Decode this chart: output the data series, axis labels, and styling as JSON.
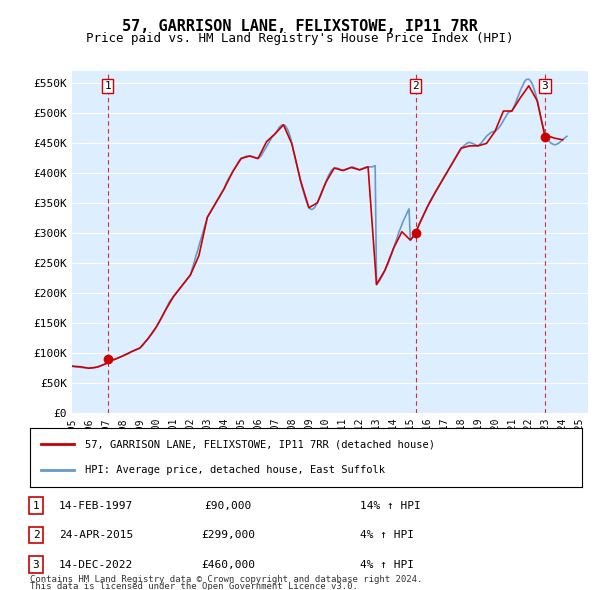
{
  "title": "57, GARRISON LANE, FELIXSTOWE, IP11 7RR",
  "subtitle": "Price paid vs. HM Land Registry's House Price Index (HPI)",
  "ylabel_ticks": [
    "£0",
    "£50K",
    "£100K",
    "£150K",
    "£200K",
    "£250K",
    "£300K",
    "£350K",
    "£400K",
    "£450K",
    "£500K",
    "£550K"
  ],
  "ytick_values": [
    0,
    50000,
    100000,
    150000,
    200000,
    250000,
    300000,
    350000,
    400000,
    450000,
    500000,
    550000
  ],
  "ylim": [
    0,
    570000
  ],
  "xlim_start": 1995.0,
  "xlim_end": 2025.5,
  "xtick_years": [
    1995,
    1996,
    1997,
    1998,
    1999,
    2000,
    2001,
    2002,
    2003,
    2004,
    2005,
    2006,
    2007,
    2008,
    2009,
    2010,
    2011,
    2012,
    2013,
    2014,
    2015,
    2016,
    2017,
    2018,
    2019,
    2020,
    2021,
    2022,
    2023,
    2024,
    2025
  ],
  "sale_dates": [
    1997.12,
    2015.31,
    2022.96
  ],
  "sale_prices": [
    90000,
    299000,
    460000
  ],
  "sale_labels": [
    "1",
    "2",
    "3"
  ],
  "red_line_color": "#cc0000",
  "blue_line_color": "#6699cc",
  "dashed_line_color": "#cc0000",
  "marker_color": "#cc0000",
  "bg_color": "#ddeeff",
  "plot_bg": "#ddeeff",
  "grid_color": "#ffffff",
  "legend1_text": "57, GARRISON LANE, FELIXSTOWE, IP11 7RR (detached house)",
  "legend2_text": "HPI: Average price, detached house, East Suffolk",
  "table_rows": [
    {
      "num": "1",
      "date": "14-FEB-1997",
      "price": "£90,000",
      "change": "14% ↑ HPI"
    },
    {
      "num": "2",
      "date": "24-APR-2015",
      "price": "£299,000",
      "change": "4% ↑ HPI"
    },
    {
      "num": "3",
      "date": "14-DEC-2022",
      "price": "£460,000",
      "change": "4% ↑ HPI"
    }
  ],
  "footnote1": "Contains HM Land Registry data © Crown copyright and database right 2024.",
  "footnote2": "This data is licensed under the Open Government Licence v3.0.",
  "hpi_data": {
    "years": [
      1995.0,
      1995.08,
      1995.17,
      1995.25,
      1995.33,
      1995.42,
      1995.5,
      1995.58,
      1995.67,
      1995.75,
      1995.83,
      1995.92,
      1996.0,
      1996.08,
      1996.17,
      1996.25,
      1996.33,
      1996.42,
      1996.5,
      1996.58,
      1996.67,
      1996.75,
      1996.83,
      1996.92,
      1997.0,
      1997.08,
      1997.17,
      1997.25,
      1997.33,
      1997.42,
      1997.5,
      1997.58,
      1997.67,
      1997.75,
      1997.83,
      1997.92,
      1998.0,
      1998.08,
      1998.17,
      1998.25,
      1998.33,
      1998.42,
      1998.5,
      1998.58,
      1998.67,
      1998.75,
      1998.83,
      1998.92,
      1999.0,
      1999.08,
      1999.17,
      1999.25,
      1999.33,
      1999.42,
      1999.5,
      1999.58,
      1999.67,
      1999.75,
      1999.83,
      1999.92,
      2000.0,
      2000.08,
      2000.17,
      2000.25,
      2000.33,
      2000.42,
      2000.5,
      2000.58,
      2000.67,
      2000.75,
      2000.83,
      2000.92,
      2001.0,
      2001.08,
      2001.17,
      2001.25,
      2001.33,
      2001.42,
      2001.5,
      2001.58,
      2001.67,
      2001.75,
      2001.83,
      2001.92,
      2002.0,
      2002.08,
      2002.17,
      2002.25,
      2002.33,
      2002.42,
      2002.5,
      2002.58,
      2002.67,
      2002.75,
      2002.83,
      2002.92,
      2003.0,
      2003.08,
      2003.17,
      2003.25,
      2003.33,
      2003.42,
      2003.5,
      2003.58,
      2003.67,
      2003.75,
      2003.83,
      2003.92,
      2004.0,
      2004.08,
      2004.17,
      2004.25,
      2004.33,
      2004.42,
      2004.5,
      2004.58,
      2004.67,
      2004.75,
      2004.83,
      2004.92,
      2005.0,
      2005.08,
      2005.17,
      2005.25,
      2005.33,
      2005.42,
      2005.5,
      2005.58,
      2005.67,
      2005.75,
      2005.83,
      2005.92,
      2006.0,
      2006.08,
      2006.17,
      2006.25,
      2006.33,
      2006.42,
      2006.5,
      2006.58,
      2006.67,
      2006.75,
      2006.83,
      2006.92,
      2007.0,
      2007.08,
      2007.17,
      2007.25,
      2007.33,
      2007.42,
      2007.5,
      2007.58,
      2007.67,
      2007.75,
      2007.83,
      2007.92,
      2008.0,
      2008.08,
      2008.17,
      2008.25,
      2008.33,
      2008.42,
      2008.5,
      2008.58,
      2008.67,
      2008.75,
      2008.83,
      2008.92,
      2009.0,
      2009.08,
      2009.17,
      2009.25,
      2009.33,
      2009.42,
      2009.5,
      2009.58,
      2009.67,
      2009.75,
      2009.83,
      2009.92,
      2010.0,
      2010.08,
      2010.17,
      2010.25,
      2010.33,
      2010.42,
      2010.5,
      2010.58,
      2010.67,
      2010.75,
      2010.83,
      2010.92,
      2011.0,
      2011.08,
      2011.17,
      2011.25,
      2011.33,
      2011.42,
      2011.5,
      2011.58,
      2011.67,
      2011.75,
      2011.83,
      2011.92,
      2012.0,
      2012.08,
      2012.17,
      2012.25,
      2012.33,
      2012.42,
      2012.5,
      2012.58,
      2012.67,
      2012.75,
      2012.83,
      2012.92,
      2013.0,
      2013.08,
      2013.17,
      2013.25,
      2013.33,
      2013.42,
      2013.5,
      2013.58,
      2013.67,
      2013.75,
      2013.83,
      2013.92,
      2014.0,
      2014.08,
      2014.17,
      2014.25,
      2014.33,
      2014.42,
      2014.5,
      2014.58,
      2014.67,
      2014.75,
      2014.83,
      2014.92,
      2015.0,
      2015.08,
      2015.17,
      2015.25,
      2015.33,
      2015.42,
      2015.5,
      2015.58,
      2015.67,
      2015.75,
      2015.83,
      2015.92,
      2016.0,
      2016.08,
      2016.17,
      2016.25,
      2016.33,
      2016.42,
      2016.5,
      2016.58,
      2016.67,
      2016.75,
      2016.83,
      2016.92,
      2017.0,
      2017.08,
      2017.17,
      2017.25,
      2017.33,
      2017.42,
      2017.5,
      2017.58,
      2017.67,
      2017.75,
      2017.83,
      2017.92,
      2018.0,
      2018.08,
      2018.17,
      2018.25,
      2018.33,
      2018.42,
      2018.5,
      2018.58,
      2018.67,
      2018.75,
      2018.83,
      2018.92,
      2019.0,
      2019.08,
      2019.17,
      2019.25,
      2019.33,
      2019.42,
      2019.5,
      2019.58,
      2019.67,
      2019.75,
      2019.83,
      2019.92,
      2020.0,
      2020.08,
      2020.17,
      2020.25,
      2020.33,
      2020.42,
      2020.5,
      2020.58,
      2020.67,
      2020.75,
      2020.83,
      2020.92,
      2021.0,
      2021.08,
      2021.17,
      2021.25,
      2021.33,
      2021.42,
      2021.5,
      2021.58,
      2021.67,
      2021.75,
      2021.83,
      2021.92,
      2022.0,
      2022.08,
      2022.17,
      2022.25,
      2022.33,
      2022.42,
      2022.5,
      2022.58,
      2022.67,
      2022.75,
      2022.83,
      2022.92,
      2023.0,
      2023.08,
      2023.17,
      2023.25,
      2023.33,
      2023.42,
      2023.5,
      2023.58,
      2023.67,
      2023.75,
      2023.83,
      2023.92,
      2024.0,
      2024.08,
      2024.17,
      2024.25
    ],
    "hpi_values": [
      78000,
      77500,
      77000,
      76800,
      76500,
      76200,
      76000,
      75800,
      75500,
      75200,
      75000,
      74800,
      74600,
      74500,
      74700,
      75000,
      75500,
      76000,
      76500,
      77500,
      78000,
      79000,
      80000,
      81000,
      82000,
      83000,
      84000,
      85000,
      86500,
      88000,
      89000,
      90000,
      91000,
      92000,
      93000,
      94000,
      95000,
      96000,
      97000,
      98000,
      99000,
      100500,
      102000,
      103000,
      104000,
      105000,
      106000,
      107000,
      108000,
      110000,
      112000,
      115000,
      118000,
      121000,
      124000,
      127000,
      130000,
      133000,
      136000,
      140000,
      144000,
      148000,
      152000,
      156000,
      160000,
      165000,
      170000,
      175000,
      180000,
      185000,
      188000,
      191000,
      194000,
      197000,
      200000,
      203000,
      206000,
      209000,
      212000,
      215000,
      218000,
      221000,
      224000,
      227000,
      230000,
      238000,
      246000,
      254000,
      262000,
      270000,
      278000,
      286000,
      294000,
      302000,
      310000,
      318000,
      326000,
      330000,
      334000,
      338000,
      342000,
      346000,
      350000,
      354000,
      358000,
      362000,
      366000,
      370000,
      374000,
      380000,
      386000,
      390000,
      394000,
      398000,
      402000,
      406000,
      410000,
      414000,
      418000,
      422000,
      424000,
      425000,
      426000,
      427000,
      428000,
      428000,
      428000,
      428000,
      427000,
      426000,
      425000,
      424000,
      424000,
      426000,
      428000,
      432000,
      436000,
      440000,
      444000,
      448000,
      452000,
      456000,
      460000,
      462000,
      465000,
      468000,
      472000,
      476000,
      478000,
      480000,
      480000,
      479000,
      476000,
      472000,
      466000,
      458000,
      448000,
      438000,
      428000,
      418000,
      408000,
      398000,
      388000,
      378000,
      370000,
      362000,
      355000,
      348000,
      342000,
      340000,
      339000,
      340000,
      342000,
      346000,
      350000,
      355000,
      360000,
      366000,
      372000,
      378000,
      384000,
      390000,
      396000,
      400000,
      404000,
      406000,
      408000,
      408000,
      408000,
      407000,
      406000,
      405000,
      404000,
      404000,
      405000,
      406000,
      407000,
      408000,
      409000,
      410000,
      409000,
      408000,
      407000,
      406000,
      405000,
      406000,
      407000,
      408000,
      409000,
      410000,
      410000,
      410000,
      410000,
      410000,
      411000,
      412000,
      214000,
      217000,
      220000,
      224000,
      228000,
      233000,
      238000,
      243000,
      248000,
      254000,
      260000,
      267000,
      274000,
      281000,
      288000,
      295000,
      302000,
      308000,
      314000,
      320000,
      325000,
      330000,
      335000,
      340000,
      288000,
      291000,
      295000,
      299000,
      303000,
      308000,
      313000,
      318000,
      323000,
      328000,
      333000,
      338000,
      343000,
      348000,
      353000,
      357000,
      361000,
      365000,
      369000,
      373000,
      377000,
      381000,
      385000,
      389000,
      393000,
      397000,
      401000,
      405000,
      409000,
      413000,
      417000,
      421000,
      425000,
      429000,
      433000,
      437000,
      441000,
      443000,
      445000,
      447000,
      449000,
      450000,
      451000,
      450000,
      449000,
      448000,
      447000,
      446000,
      445000,
      447000,
      449000,
      452000,
      455000,
      458000,
      461000,
      463000,
      465000,
      467000,
      468000,
      469000,
      469000,
      471000,
      473000,
      476000,
      479000,
      483000,
      487000,
      491000,
      495000,
      499000,
      501000,
      502000,
      503000,
      508000,
      513000,
      519000,
      525000,
      531000,
      537000,
      542000,
      547000,
      552000,
      555000,
      556000,
      556000,
      554000,
      550000,
      545000,
      538000,
      530000,
      520000,
      509000,
      498000,
      487000,
      478000,
      470000,
      463000,
      458000,
      454000,
      451000,
      449000,
      448000,
      447000,
      447000,
      448000,
      449000,
      451000,
      453000,
      455000,
      457000,
      459000,
      461000
    ]
  },
  "red_price_data": {
    "years": [
      1995.0,
      1995.5,
      1996.0,
      1996.5,
      1997.0,
      1997.12,
      1997.5,
      1998.0,
      1998.5,
      1999.0,
      1999.5,
      2000.0,
      2000.5,
      2001.0,
      2001.5,
      2002.0,
      2002.5,
      2003.0,
      2003.5,
      2004.0,
      2004.5,
      2005.0,
      2005.5,
      2006.0,
      2006.5,
      2007.0,
      2007.5,
      2008.0,
      2008.5,
      2009.0,
      2009.5,
      2010.0,
      2010.5,
      2011.0,
      2011.5,
      2012.0,
      2012.5,
      2013.0,
      2013.5,
      2014.0,
      2014.5,
      2015.0,
      2015.31,
      2015.5,
      2016.0,
      2016.5,
      2017.0,
      2017.5,
      2018.0,
      2018.5,
      2019.0,
      2019.5,
      2020.0,
      2020.5,
      2021.0,
      2021.5,
      2022.0,
      2022.5,
      2022.96,
      2023.0,
      2023.5,
      2024.0
    ],
    "values": [
      78000,
      77000,
      74600,
      76500,
      82000,
      90000,
      89000,
      95000,
      102000,
      108000,
      124000,
      144000,
      170000,
      194000,
      212000,
      230000,
      262000,
      326000,
      350000,
      374000,
      402000,
      424000,
      428000,
      424000,
      452000,
      465000,
      480000,
      448000,
      388000,
      342000,
      350000,
      384000,
      408000,
      404000,
      409000,
      405000,
      410000,
      214000,
      238000,
      274000,
      302000,
      288000,
      299000,
      313000,
      343000,
      369000,
      393000,
      417000,
      441000,
      445000,
      445000,
      449000,
      469000,
      503000,
      503000,
      525000,
      545000,
      520000,
      460000,
      463000,
      458000,
      455000
    ]
  }
}
